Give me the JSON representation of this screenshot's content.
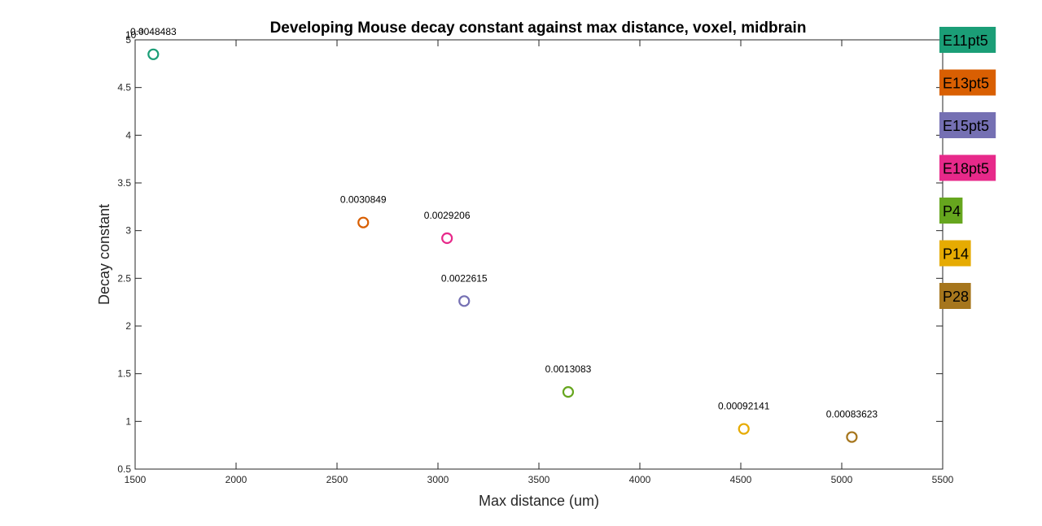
{
  "chart_data": {
    "type": "scatter",
    "title": "Developing Mouse decay constant against max distance, voxel, midbrain",
    "xlabel": "Max distance (um)",
    "ylabel": "Decay constant",
    "xlim": [
      1500,
      5500
    ],
    "ylim": [
      0.5,
      5
    ],
    "xticks": [
      "1500",
      "2000",
      "2500",
      "3000",
      "3500",
      "4000",
      "4500",
      "5000",
      "5500"
    ],
    "yticks": [
      "0.5",
      "1",
      "1.5",
      "2",
      "2.5",
      "3",
      "3.5",
      "4",
      "4.5",
      "5"
    ],
    "y_exponent_label": "10",
    "y_exponent_power": "-3",
    "grid": false,
    "legend_placement": "right",
    "series": [
      {
        "name": "E11pt5",
        "x": 1590,
        "y": 4.8483,
        "label": "0.0048483",
        "color": "#1b9e77"
      },
      {
        "name": "E13pt5",
        "x": 2630,
        "y": 3.0849,
        "label": "0.0030849",
        "color": "#d95f02"
      },
      {
        "name": "E15pt5",
        "x": 3130,
        "y": 2.2615,
        "label": "0.0022615",
        "color": "#7570b3"
      },
      {
        "name": "E18pt5",
        "x": 3045,
        "y": 2.9206,
        "label": "0.0029206",
        "color": "#e7298a"
      },
      {
        "name": "P4",
        "x": 3645,
        "y": 1.3083,
        "label": "0.0013083",
        "color": "#66a61e"
      },
      {
        "name": "P14",
        "x": 4515,
        "y": 0.92141,
        "label": "0.00092141",
        "color": "#e6ab02"
      },
      {
        "name": "P28",
        "x": 5050,
        "y": 0.83623,
        "label": "0.00083623",
        "color": "#a6761d"
      }
    ]
  }
}
